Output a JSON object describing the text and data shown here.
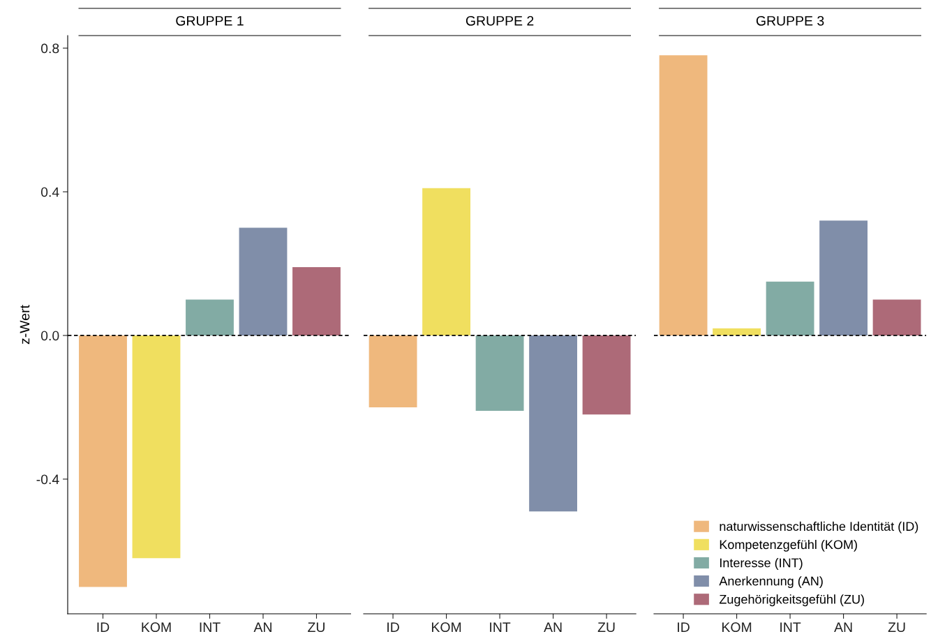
{
  "chart_data": [
    {
      "type": "bar",
      "title": "GRUPPE 1",
      "ylabel": "z-Wert",
      "categories": [
        "ID",
        "KOM",
        "INT",
        "AN",
        "ZU"
      ],
      "stacked": true,
      "series": [
        {
          "color": "#efb87d",
          "values": [
            -0.7,
            null,
            null,
            null,
            null
          ]
        },
        {
          "color": "#f0df5f",
          "values": [
            null,
            -0.62,
            null,
            null,
            null
          ]
        },
        {
          "color": "#82aba4",
          "values": [
            null,
            null,
            0.1,
            null,
            null
          ]
        },
        {
          "color": "#808ea9",
          "values": [
            null,
            null,
            null,
            0.3,
            null
          ]
        },
        {
          "color": "#ad6a78",
          "values": [
            null,
            null,
            null,
            null,
            0.19
          ]
        }
      ],
      "ylim": [
        -0.775,
        0.835
      ],
      "yticks": [
        {
          "value": -0.4,
          "label": "-0.4"
        },
        {
          "value": 0,
          "label": "0.0"
        },
        {
          "value": 0.4,
          "label": "0.4"
        },
        {
          "value": 0.8,
          "label": "0.8"
        }
      ],
      "ref_lines": [
        {
          "axis": "y",
          "value": 0,
          "color": "#000000",
          "line_style": "dashed"
        }
      ],
      "grid": false
    },
    {
      "type": "bar",
      "title": "GRUPPE 2",
      "categories": [
        "ID",
        "KOM",
        "INT",
        "AN",
        "ZU"
      ],
      "stacked": true,
      "series": [
        {
          "color": "#efb87d",
          "values": [
            -0.2,
            null,
            null,
            null,
            null
          ]
        },
        {
          "color": "#f0df5f",
          "values": [
            null,
            0.41,
            null,
            null,
            null
          ]
        },
        {
          "color": "#82aba4",
          "values": [
            null,
            null,
            -0.21,
            null,
            null
          ]
        },
        {
          "color": "#808ea9",
          "values": [
            null,
            null,
            null,
            -0.49,
            null
          ]
        },
        {
          "color": "#ad6a78",
          "values": [
            null,
            null,
            null,
            null,
            -0.22
          ]
        }
      ],
      "ylim": [
        -0.775,
        0.835
      ],
      "tick_labels": "x",
      "ref_lines": [
        {
          "axis": "y",
          "value": 0,
          "color": "#000000",
          "line_style": "dashed"
        }
      ],
      "grid": false
    },
    {
      "type": "bar",
      "title": "GRUPPE 3",
      "categories": [
        "ID",
        "KOM",
        "INT",
        "AN",
        "ZU"
      ],
      "stacked": true,
      "series": [
        {
          "name": "naturwissenschaftliche Identität (ID)",
          "color": "#efb87d",
          "values": [
            0.78,
            null,
            null,
            null,
            null
          ]
        },
        {
          "name": "Kompetenzgefühl (KOM)",
          "color": "#f0df5f",
          "values": [
            null,
            0.02,
            null,
            null,
            null
          ]
        },
        {
          "name": "Interesse (INT)",
          "color": "#82aba4",
          "values": [
            null,
            null,
            0.15,
            null,
            null
          ]
        },
        {
          "name": "Anerkennung (AN)",
          "color": "#808ea9",
          "values": [
            null,
            null,
            null,
            0.32,
            null
          ]
        },
        {
          "name": "Zugehörigkeitsgefühl (ZU)",
          "color": "#ad6a78",
          "values": [
            null,
            null,
            null,
            null,
            0.1
          ]
        }
      ],
      "ylim": [
        -0.775,
        0.835
      ],
      "tick_labels": "x",
      "ref_lines": [
        {
          "axis": "y",
          "value": 0,
          "color": "#000000",
          "line_style": "dashed"
        }
      ],
      "grid": false,
      "legend": "bottom right"
    }
  ]
}
